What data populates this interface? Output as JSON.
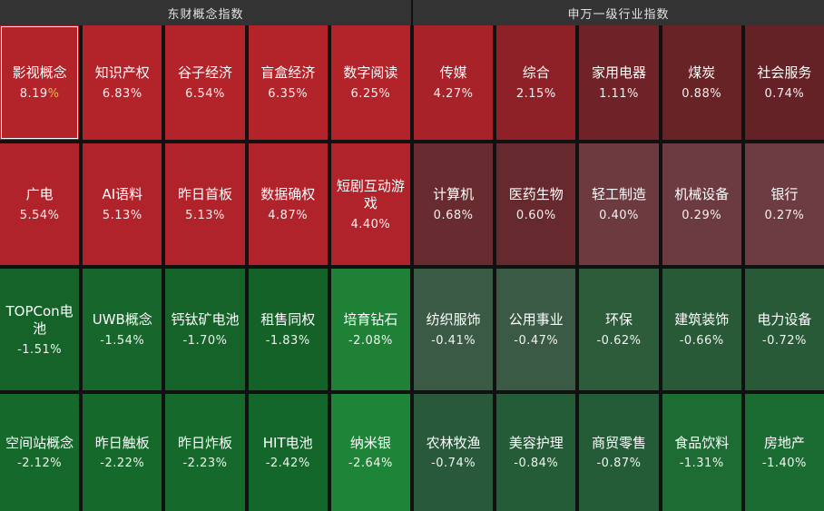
{
  "colors": {
    "page_bg": "#111111",
    "header_bg": "#333333",
    "header_text": "#e2e2e2",
    "cell_label_text": "#ffffff",
    "cell_percent_text": "#f3ecec",
    "selected_cell_border": "#ffffff",
    "selected_percent_sign": "#e7b94e",
    "gap_color": "#111111"
  },
  "chart_data": {
    "type": "heatmap",
    "title": "",
    "layout": {
      "rows": 4,
      "columns_per_group": 5,
      "groups_side_by_side": true,
      "value_unit": "%"
    },
    "groups": [
      {
        "name": "东财概念指数",
        "cells": [
          {
            "label": "影视概念",
            "pct": "8.19%",
            "value": 8.19,
            "color": "#b2232a",
            "selected": true
          },
          {
            "label": "知识产权",
            "pct": "6.83%",
            "value": 6.83,
            "color": "#b2232a"
          },
          {
            "label": "谷子经济",
            "pct": "6.54%",
            "value": 6.54,
            "color": "#b2232a"
          },
          {
            "label": "盲盒经济",
            "pct": "6.35%",
            "value": 6.35,
            "color": "#b2232a"
          },
          {
            "label": "数字阅读",
            "pct": "6.25%",
            "value": 6.25,
            "color": "#b2232a"
          },
          {
            "label": "广电",
            "pct": "5.54%",
            "value": 5.54,
            "color": "#b0232a"
          },
          {
            "label": "AI语料",
            "pct": "5.13%",
            "value": 5.13,
            "color": "#b0232a"
          },
          {
            "label": "昨日首板",
            "pct": "5.13%",
            "value": 5.13,
            "color": "#b0232a"
          },
          {
            "label": "数据确权",
            "pct": "4.87%",
            "value": 4.87,
            "color": "#b0232a"
          },
          {
            "label": "短剧互动游戏",
            "pct": "4.40%",
            "value": 4.4,
            "color": "#b0232a"
          },
          {
            "label": "TOPCon电池",
            "pct": "-1.51%",
            "value": -1.51,
            "color": "#156329"
          },
          {
            "label": "UWB概念",
            "pct": "-1.54%",
            "value": -1.54,
            "color": "#17672c"
          },
          {
            "label": "钙钛矿电池",
            "pct": "-1.70%",
            "value": -1.7,
            "color": "#156329"
          },
          {
            "label": "租售同权",
            "pct": "-1.83%",
            "value": -1.83,
            "color": "#146228"
          },
          {
            "label": "培育钻石",
            "pct": "-2.08%",
            "value": -2.08,
            "color": "#1e8136"
          },
          {
            "label": "空间站概念",
            "pct": "-2.12%",
            "value": -2.12,
            "color": "#156a2b"
          },
          {
            "label": "昨日触板",
            "pct": "-2.22%",
            "value": -2.22,
            "color": "#156a2b"
          },
          {
            "label": "昨日炸板",
            "pct": "-2.23%",
            "value": -2.23,
            "color": "#156a2b"
          },
          {
            "label": "HIT电池",
            "pct": "-2.42%",
            "value": -2.42,
            "color": "#14672a"
          },
          {
            "label": "纳米银",
            "pct": "-2.64%",
            "value": -2.64,
            "color": "#1e8437"
          }
        ]
      },
      {
        "name": "申万一级行业指数",
        "cells": [
          {
            "label": "传媒",
            "pct": "4.27%",
            "value": 4.27,
            "color": "#a8222a"
          },
          {
            "label": "综合",
            "pct": "2.15%",
            "value": 2.15,
            "color": "#8e2127"
          },
          {
            "label": "家用电器",
            "pct": "1.11%",
            "value": 1.11,
            "color": "#6f2328"
          },
          {
            "label": "煤炭",
            "pct": "0.88%",
            "value": 0.88,
            "color": "#682327"
          },
          {
            "label": "社会服务",
            "pct": "0.74%",
            "value": 0.74,
            "color": "#642226"
          },
          {
            "label": "计算机",
            "pct": "0.68%",
            "value": 0.68,
            "color": "#682c30"
          },
          {
            "label": "医药生物",
            "pct": "0.60%",
            "value": 0.6,
            "color": "#662a2e"
          },
          {
            "label": "轻工制造",
            "pct": "0.40%",
            "value": 0.4,
            "color": "#6d3a40"
          },
          {
            "label": "机械设备",
            "pct": "0.29%",
            "value": 0.29,
            "color": "#6c3b41"
          },
          {
            "label": "银行",
            "pct": "0.27%",
            "value": 0.27,
            "color": "#6c3c42"
          },
          {
            "label": "纺织服饰",
            "pct": "-0.41%",
            "value": -0.41,
            "color": "#3b5a46"
          },
          {
            "label": "公用事业",
            "pct": "-0.47%",
            "value": -0.47,
            "color": "#3a5a45"
          },
          {
            "label": "环保",
            "pct": "-0.62%",
            "value": -0.62,
            "color": "#2c5c3a"
          },
          {
            "label": "建筑装饰",
            "pct": "-0.66%",
            "value": -0.66,
            "color": "#295a38"
          },
          {
            "label": "电力设备",
            "pct": "-0.72%",
            "value": -0.72,
            "color": "#285a38"
          },
          {
            "label": "农林牧渔",
            "pct": "-0.74%",
            "value": -0.74,
            "color": "#27593a"
          },
          {
            "label": "美容护理",
            "pct": "-0.84%",
            "value": -0.84,
            "color": "#255c38"
          },
          {
            "label": "商贸零售",
            "pct": "-0.87%",
            "value": -0.87,
            "color": "#245c37"
          },
          {
            "label": "食品饮料",
            "pct": "-1.31%",
            "value": -1.31,
            "color": "#1c6c33"
          },
          {
            "label": "房地产",
            "pct": "-1.40%",
            "value": -1.4,
            "color": "#1b6c33"
          }
        ]
      }
    ]
  }
}
